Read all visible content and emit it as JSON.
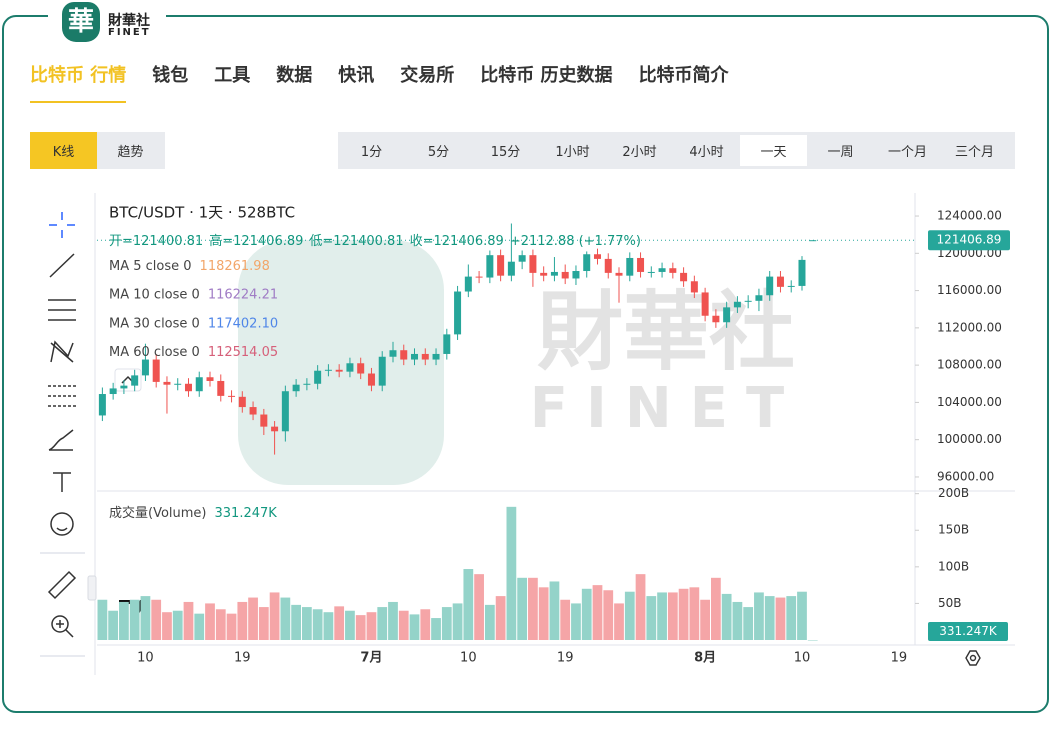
{
  "header": {
    "logo_mark": "華",
    "logo_text": "財華社",
    "logo_sub": "FINET"
  },
  "nav": {
    "tabs": [
      "比特币 行情",
      "钱包",
      "工具",
      "数据",
      "快讯",
      "交易所",
      "比特币 历史数据",
      "比特币简介"
    ],
    "active": 0
  },
  "modes": {
    "items": [
      "K线",
      "趋势"
    ],
    "active": 0
  },
  "intervals": {
    "items": [
      "1分",
      "5分",
      "15分",
      "1小时",
      "2小时",
      "4小时",
      "一天",
      "一周",
      "一个月",
      "三个月"
    ],
    "active": 6
  },
  "chart_data": {
    "type": "candlestick",
    "title": "BTC/USDT · 1天 · 528BTC",
    "ohlc_labels": [
      "开=121400.81",
      "高=121406.89",
      "低=121400.81",
      "收=121406.89",
      "+2112.88 (+1.77%)"
    ],
    "indicators": [
      {
        "name": "MA 5 close 0",
        "value_label": "118261.98",
        "color": "#f2a66a"
      },
      {
        "name": "MA 10 close 0",
        "value_label": "116224.21",
        "color": "#a07cc5"
      },
      {
        "name": "MA 30 close 0",
        "value_label": "117402.10",
        "color": "#4f86e8"
      },
      {
        "name": "MA 60 close 0",
        "value_label": "112514.05",
        "color": "#d6607a"
      }
    ],
    "volume_title": "成交量(Volume)",
    "volume_label": "331.247K",
    "price_tag": "121406.89",
    "volume_tag": "331.247K",
    "watermark": [
      "財華社",
      "FINET"
    ],
    "up_color": "#26a69a",
    "down_color": "#ef5350",
    "up_volume_color": "#94d3c9",
    "down_volume_color": "#f5a5a7",
    "categories": [
      null,
      null,
      null,
      null,
      "10",
      null,
      null,
      null,
      null,
      null,
      null,
      null,
      null,
      "19",
      null,
      null,
      null,
      null,
      null,
      null,
      null,
      null,
      null,
      null,
      null,
      "7月",
      null,
      null,
      null,
      null,
      null,
      null,
      null,
      null,
      "10",
      null,
      null,
      null,
      null,
      null,
      null,
      null,
      null,
      "19",
      null,
      null,
      null,
      null,
      null,
      null,
      null,
      null,
      null,
      null,
      null,
      null,
      "8月",
      null,
      null,
      null,
      null,
      null,
      null,
      null,
      null,
      "10",
      null,
      null,
      null,
      null,
      null,
      null,
      null,
      null,
      "19",
      null
    ],
    "open": [
      102600,
      104900,
      105500,
      105800,
      106900,
      108600,
      106200,
      105900,
      106000,
      105200,
      106700,
      106300,
      104700,
      104600,
      103500,
      102700,
      101400,
      100900,
      105200,
      105900,
      106000,
      107400,
      107500,
      107300,
      108200,
      107100,
      105800,
      108900,
      109600,
      108600,
      109200,
      108600,
      109200,
      111300,
      115900,
      117500,
      117400,
      119800,
      117600,
      119100,
      119800,
      117900,
      117600,
      118000,
      117300,
      118100,
      119900,
      119400,
      117900,
      117600,
      119500,
      118000,
      118000,
      118400,
      117900,
      117000,
      115800,
      113300,
      112600,
      114200,
      114800,
      114900,
      115500,
      117500,
      116400,
      116500,
      121400.81,
      null,
      null,
      null,
      null,
      null,
      null,
      null,
      null,
      null
    ],
    "high": [
      105600,
      106100,
      106400,
      107500,
      110300,
      109200,
      106800,
      106600,
      106600,
      107300,
      107300,
      107000,
      105300,
      105200,
      104100,
      103300,
      102000,
      105800,
      106500,
      106600,
      108000,
      108100,
      108100,
      108800,
      108800,
      107700,
      109500,
      110500,
      110200,
      109800,
      109800,
      109800,
      111900,
      116500,
      118800,
      118100,
      120300,
      120400,
      123200,
      120300,
      120400,
      118600,
      119600,
      118800,
      118700,
      120200,
      120500,
      120000,
      118500,
      120100,
      120100,
      118600,
      119000,
      119000,
      118500,
      117600,
      116300,
      114000,
      114800,
      115400,
      115500,
      116200,
      118100,
      118100,
      117100,
      119700,
      121406.89,
      null,
      null,
      null,
      null,
      null,
      null,
      null,
      null,
      null
    ],
    "low": [
      102000,
      104300,
      104900,
      105200,
      106300,
      105600,
      102800,
      105300,
      104600,
      104600,
      105700,
      104100,
      104000,
      102900,
      102100,
      100500,
      98400,
      99800,
      104600,
      105300,
      105400,
      106800,
      106700,
      106700,
      106500,
      105200,
      105200,
      108300,
      108000,
      108000,
      108000,
      108000,
      108600,
      110700,
      115300,
      116800,
      116800,
      117000,
      117000,
      118300,
      116400,
      117000,
      117000,
      116700,
      116600,
      117400,
      118800,
      117300,
      114700,
      117000,
      117400,
      117400,
      117400,
      117300,
      116400,
      115200,
      112700,
      112000,
      112000,
      113600,
      114100,
      113800,
      114900,
      115800,
      115800,
      116000,
      121400.81,
      null,
      null,
      null,
      null,
      null,
      null,
      null,
      null,
      null
    ],
    "close": [
      104900,
      105500,
      105800,
      106900,
      108600,
      106200,
      105900,
      106000,
      105200,
      106700,
      106300,
      104700,
      104600,
      103500,
      102700,
      101400,
      100900,
      105200,
      105900,
      106000,
      107400,
      107500,
      107300,
      108200,
      107100,
      105800,
      108900,
      109600,
      108600,
      109200,
      108600,
      109200,
      111300,
      115900,
      117500,
      117400,
      119800,
      117600,
      119100,
      119800,
      117900,
      117600,
      118000,
      117300,
      118100,
      119900,
      119400,
      117900,
      117600,
      119500,
      118000,
      118000,
      118400,
      117900,
      117000,
      115800,
      113300,
      112600,
      114200,
      114800,
      114900,
      115500,
      117500,
      116400,
      116500,
      119294,
      121406.89,
      null,
      null,
      null,
      null,
      null,
      null,
      null,
      null,
      null
    ],
    "volume": [
      55,
      40,
      52,
      55,
      60,
      55,
      38,
      40,
      52,
      36,
      50,
      42,
      36,
      52,
      58,
      45,
      65,
      58,
      48,
      45,
      42,
      38,
      46,
      40,
      34,
      38,
      45,
      52,
      40,
      35,
      42,
      30,
      45,
      50,
      97,
      90,
      48,
      60,
      182,
      85,
      85,
      72,
      80,
      55,
      50,
      70,
      75,
      68,
      50,
      66,
      90,
      60,
      65,
      65,
      70,
      72,
      55,
      85,
      63,
      52,
      45,
      65,
      60,
      58,
      60,
      66,
      0.000331247,
      null,
      null,
      null,
      null,
      null,
      null,
      null,
      null,
      null
    ],
    "ylim": [
      94600,
      126150
    ],
    "yticks": [
      {
        "value": 96000,
        "label": "96000.00"
      },
      {
        "value": 100000,
        "label": "100000.00"
      },
      {
        "value": 104000,
        "label": "104000.00"
      },
      {
        "value": 108000,
        "label": "108000.00"
      },
      {
        "value": 112000,
        "label": "112000.00"
      },
      {
        "value": 116000,
        "label": "116000.00"
      },
      {
        "value": 120000,
        "label": "120000.00"
      },
      {
        "value": 124000,
        "label": "124000.00"
      }
    ],
    "y2lim": [
      0,
      205
    ],
    "y2ticks": [
      {
        "value": 50,
        "label": "50B"
      },
      {
        "value": 100,
        "label": "100B"
      },
      {
        "value": 150,
        "label": "150B"
      },
      {
        "value": 200,
        "label": "200B"
      }
    ]
  }
}
